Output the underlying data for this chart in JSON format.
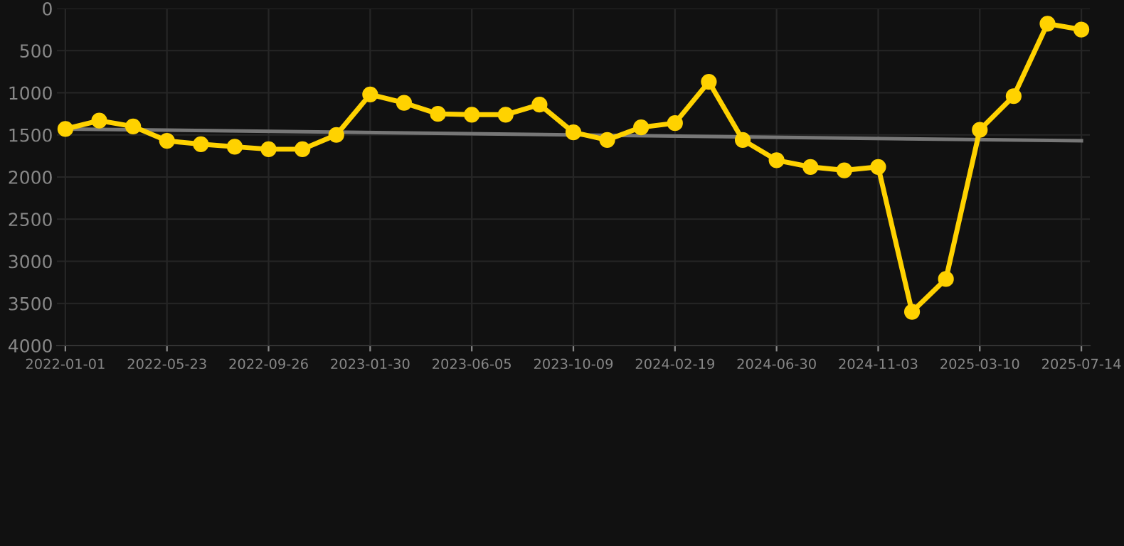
{
  "chart_data": {
    "type": "line",
    "categories": [
      "2022-01-01",
      null,
      null,
      "2022-05-23",
      null,
      null,
      "2022-09-26",
      null,
      null,
      "2023-01-30",
      null,
      null,
      "2023-06-05",
      null,
      null,
      "2023-10-09",
      null,
      null,
      "2024-02-19",
      null,
      null,
      "2024-06-30",
      null,
      null,
      "2024-11-03",
      null,
      null,
      "2025-03-10",
      null,
      null,
      "2025-07-14"
    ],
    "series": [
      {
        "color": "#ffd200",
        "marker": "circle",
        "values": [
          1430,
          1330,
          1400,
          1570,
          1610,
          1640,
          1670,
          1670,
          1500,
          1020,
          1120,
          1250,
          1260,
          1260,
          1140,
          1470,
          1560,
          1410,
          1360,
          870,
          1560,
          1800,
          1880,
          1920,
          1880,
          3600,
          3210,
          1440,
          1040,
          180,
          250
        ]
      },
      {
        "type": "line",
        "color": "#777777",
        "marker": "none",
        "values": [
          1430,
          null,
          null,
          null,
          null,
          null,
          null,
          null,
          null,
          null,
          null,
          null,
          null,
          null,
          null,
          null,
          null,
          null,
          null,
          null,
          null,
          null,
          null,
          null,
          null,
          null,
          null,
          null,
          null,
          null,
          1570
        ]
      }
    ],
    "ylim": [
      4000,
      0
    ],
    "yticks": [
      0,
      500,
      1000,
      1500,
      2000,
      2500,
      3000,
      3500,
      4000
    ],
    "grid": true
  }
}
